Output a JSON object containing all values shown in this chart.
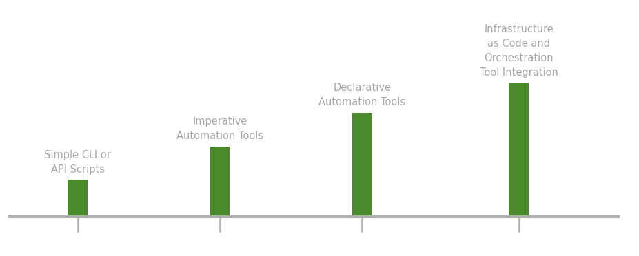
{
  "categories": [
    "Simple CLI or\nAPI Scripts",
    "Imperative\nAutomation Tools",
    "Declarative\nAutomation Tools",
    "Infrastructure\nas Code and\nOrchestration\nTool Integration"
  ],
  "values": [
    0.55,
    1.05,
    1.55,
    2.0
  ],
  "bar_color": "#4a8a2a",
  "bar_width": 0.28,
  "x_positions": [
    1.0,
    3.0,
    5.0,
    7.2
  ],
  "line_color": "#b0b0b0",
  "line_y": 0,
  "tick_height": -0.22,
  "label_color": "#a8a8a8",
  "label_fontsize": 10.5,
  "background_color": "#ffffff",
  "ylim": [
    -0.55,
    3.2
  ],
  "xlim": [
    0.0,
    8.8
  ]
}
